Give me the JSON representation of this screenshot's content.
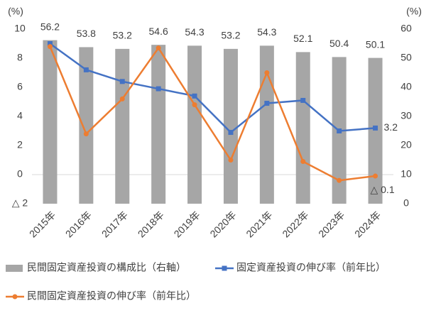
{
  "chart_data": {
    "type": "bar_line",
    "y_label": "(%)",
    "y2_label": "(%)",
    "categories": [
      "2015年",
      "2016年",
      "2017年",
      "2018年",
      "2019年",
      "2020年",
      "2021年",
      "2022年",
      "2023年",
      "2024年"
    ],
    "ylim": [
      -2,
      10
    ],
    "yticks": [
      {
        "value": -2,
        "label": "△ 2"
      },
      0,
      2,
      4,
      6,
      8,
      10
    ],
    "y2lim": [
      0,
      60
    ],
    "y2ticks": [
      0,
      10,
      20,
      30,
      40,
      50,
      60
    ],
    "grid": false,
    "series": [
      {
        "name": "民間固定資産投資の構成比（右軸）",
        "type": "bar",
        "axis": "y2",
        "color": "#a6a6a6",
        "values": [
          56.2,
          53.8,
          53.2,
          54.6,
          54.3,
          53.2,
          54.3,
          52.1,
          50.4,
          50.1
        ]
      },
      {
        "name": "固定資産投資の伸び率（前年比）",
        "type": "line",
        "marker": "square",
        "color": "#4472c4",
        "values": [
          9.0,
          7.2,
          6.4,
          5.9,
          5.4,
          2.9,
          4.9,
          5.1,
          3.0,
          3.2
        ],
        "value_labels": [
          null,
          null,
          null,
          null,
          null,
          null,
          null,
          null,
          null,
          "3.2"
        ]
      },
      {
        "name": "民間固定資産投資の伸び率（前年比）",
        "type": "line",
        "marker": "circle",
        "color": "#ed7d31",
        "values": [
          8.8,
          2.8,
          5.2,
          8.7,
          4.8,
          1.0,
          7.0,
          0.9,
          -0.4,
          -0.1
        ],
        "value_labels": [
          null,
          null,
          null,
          null,
          null,
          null,
          null,
          null,
          null,
          "△ 0.1"
        ]
      }
    ]
  }
}
